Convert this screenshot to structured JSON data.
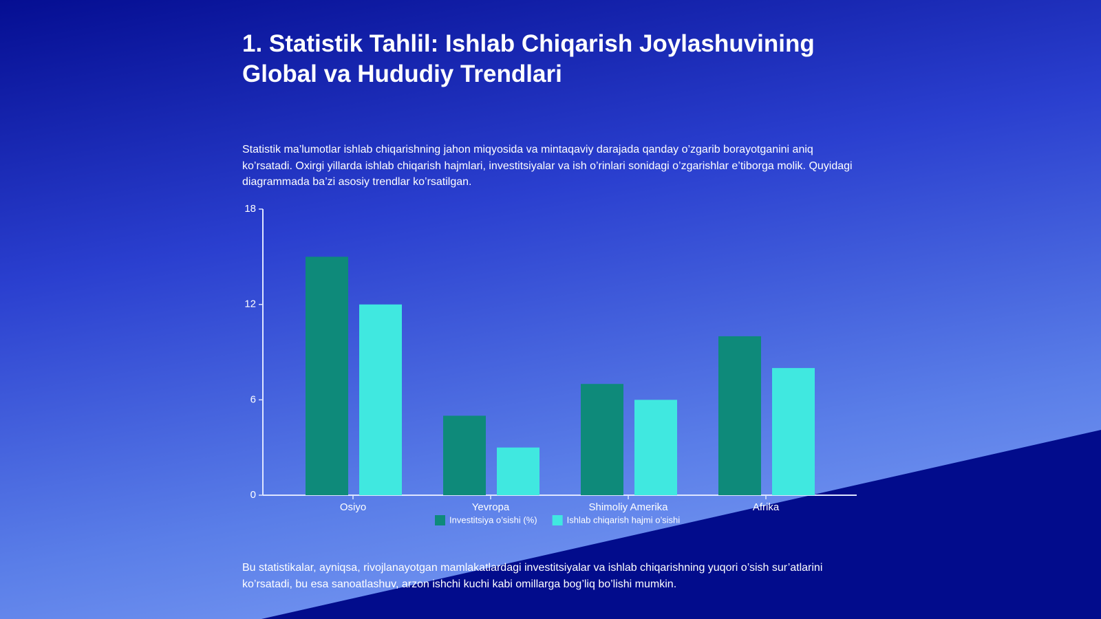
{
  "title": "1. Statistik Tahlil: Ishlab Chiqarish Joylashuvining Global va Hududiy Trendlari",
  "intro": "Statistik ma’lumotlar ishlab chiqarishning jahon miqyosida va mintaqaviy darajada qanday o’zgarib borayotganini aniq ko’rsatadi. Oxirgi yillarda ishlab chiqarish hajmlari, investitsiyalar va ish o’rinlari sonidagi o’zgarishlar e’tiborga molik. Quyidagi diagrammada ba’zi asosiy trendlar ko’rsatilgan.",
  "chart_data": {
    "type": "bar",
    "categories": [
      "Osiyo",
      "Yevropa",
      "Shimoliy Amerika",
      "Afrika"
    ],
    "series": [
      {
        "name": "Investitsiya o’sishi (%)",
        "color": "#0e8a7a",
        "values": [
          15,
          5,
          7,
          10
        ]
      },
      {
        "name": "Ishlab chiqarish hajmi o’sishi",
        "color": "#40e8e0",
        "values": [
          12,
          3,
          6,
          8
        ]
      }
    ],
    "ylim": [
      0,
      18
    ],
    "yticks": [
      0,
      6,
      12,
      18
    ],
    "legend": "bottom"
  },
  "footer": "Bu statistikalar, ayniqsa, rivojlanayotgan mamlakatlardagi investitsiyalar va ishlab chiqarishning yuqori o’sish sur’atlarini ko’rsatadi, bu esa sanoatlashuv, arzon ishchi kuchi kabi omillarga bog’liq bo’lishi mumkin."
}
